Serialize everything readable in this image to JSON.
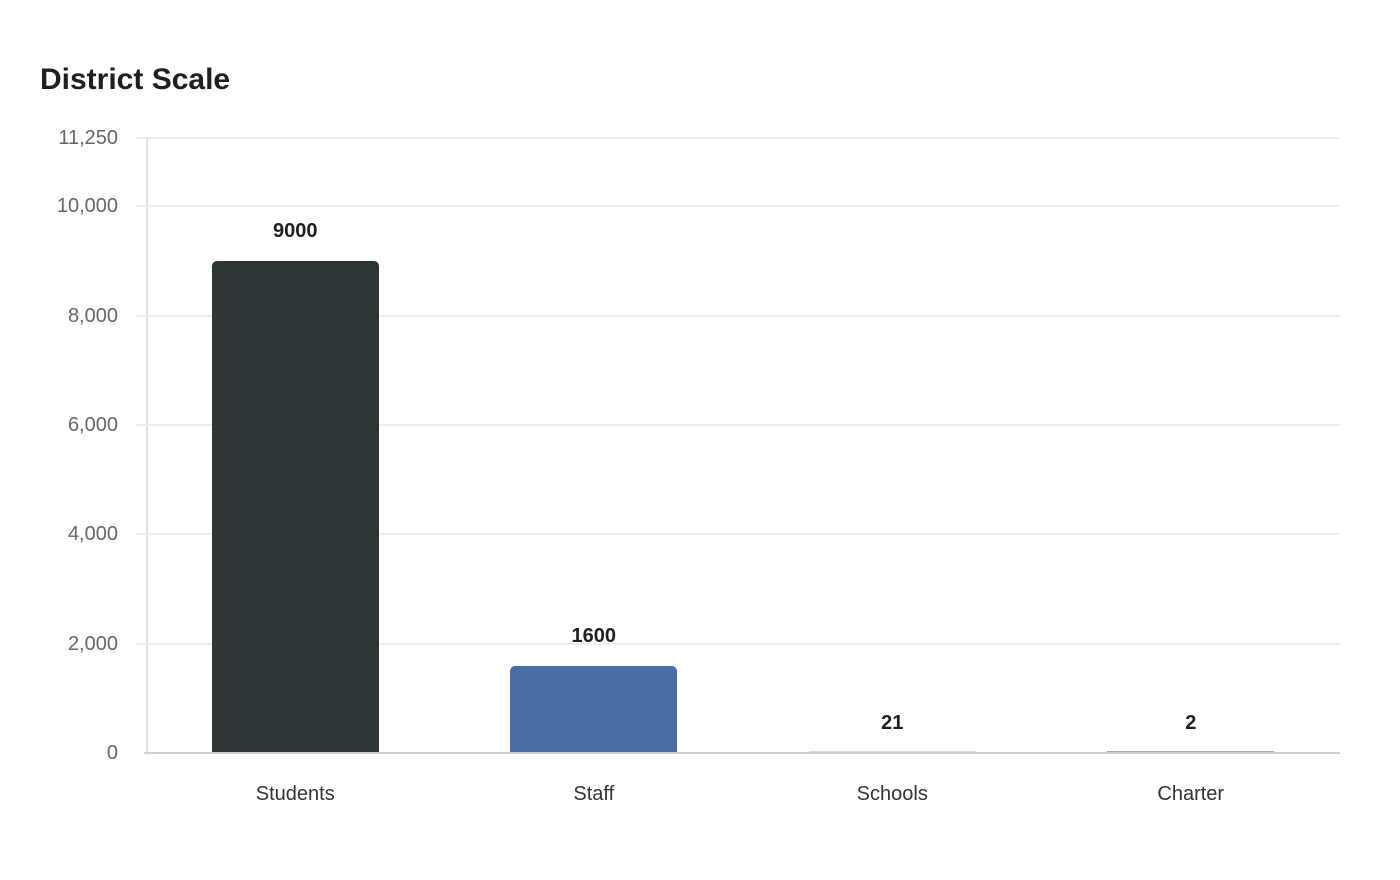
{
  "title": "District Scale",
  "chart_data": {
    "type": "bar",
    "title": "District Scale",
    "xlabel": "",
    "ylabel": "",
    "categories": [
      "Students",
      "Staff",
      "Schools",
      "Charter"
    ],
    "values": [
      9000,
      1600,
      21,
      2
    ],
    "data_labels": [
      "9000",
      "1600",
      "21",
      "2"
    ],
    "colors": [
      "#2e3537",
      "#4a6ea3",
      "#dcdcdc",
      "#a8aeae"
    ],
    "ylim": [
      0,
      11250
    ],
    "yticks": [
      0,
      2000,
      4000,
      6000,
      8000,
      10000,
      11250
    ],
    "ytick_labels": [
      "0",
      "2,000",
      "4,000",
      "6,000",
      "8,000",
      "10,000",
      "11,250"
    ],
    "grid": true,
    "legend": "none"
  }
}
